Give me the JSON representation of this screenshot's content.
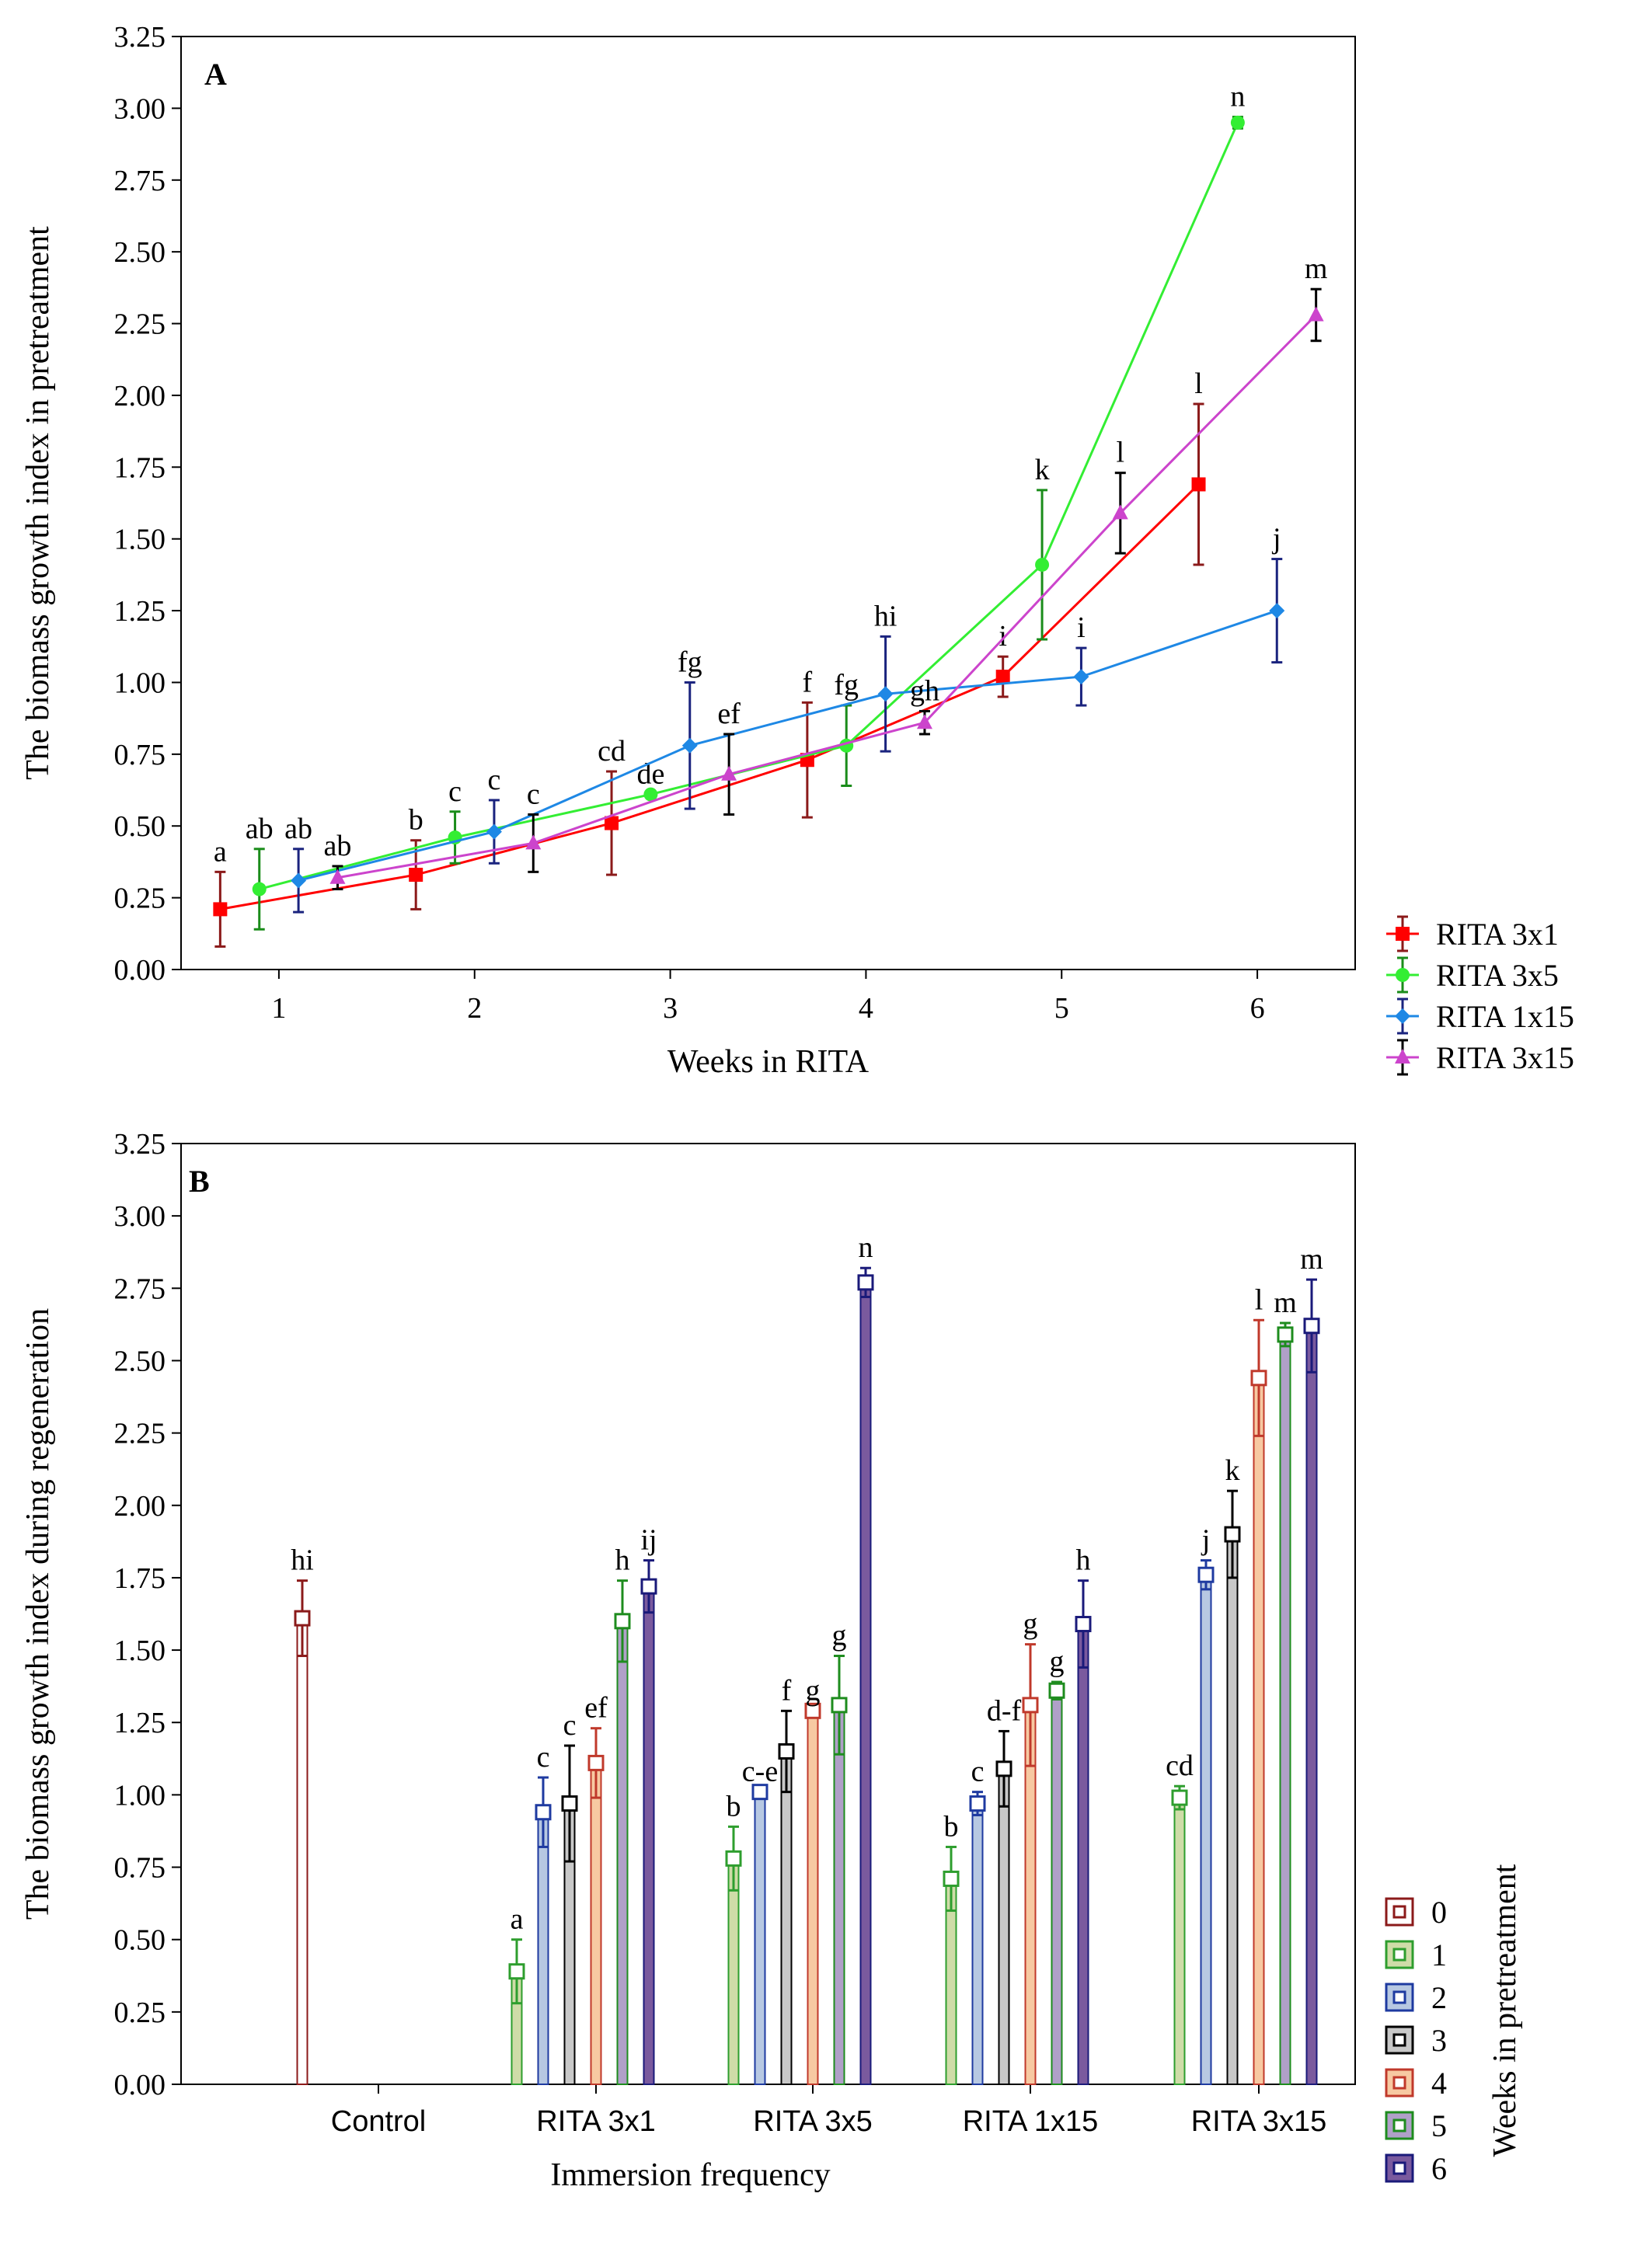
{
  "chart_data": [
    {
      "type": "line",
      "panel_label": "A",
      "xlabel": "Weeks in RITA",
      "ylabel": "The biomass growth index in pretreatment",
      "xlim": [
        0.5,
        6.5
      ],
      "ylim": [
        0,
        3.25
      ],
      "x_ticks": [
        "1",
        "2",
        "3",
        "4",
        "5",
        "6"
      ],
      "y_ticks": [
        "0.00",
        "0.25",
        "0.50",
        "0.75",
        "1.00",
        "1.25",
        "1.50",
        "1.75",
        "2.00",
        "2.25",
        "2.50",
        "2.75",
        "3.00",
        "3.25"
      ],
      "grid": false,
      "legend_position": "right-bottom, outside plot",
      "series": [
        {
          "name": "RITA 3x1",
          "color": "#ff0000",
          "errbar_color": "#8b1a1a",
          "marker": "square",
          "x": [
            0.7,
            1.7,
            2.7,
            3.7,
            4.7,
            5.7
          ],
          "y": [
            0.21,
            0.33,
            0.51,
            0.73,
            1.02,
            1.69
          ],
          "err": [
            0.13,
            0.12,
            0.18,
            0.2,
            0.07,
            0.28
          ],
          "letters": [
            "a",
            "b",
            "cd",
            "f",
            "i",
            "l"
          ]
        },
        {
          "name": "RITA 3x5",
          "color": "#33ee33",
          "errbar_color": "#1a8c1a",
          "marker": "circle",
          "x": [
            0.9,
            1.9,
            2.9,
            3.9,
            4.9,
            5.9
          ],
          "y": [
            0.28,
            0.46,
            0.61,
            0.78,
            1.41,
            2.95
          ],
          "err": [
            0.14,
            0.09,
            0.0,
            0.14,
            0.26,
            0.02
          ],
          "letters": [
            "ab",
            "c",
            "de",
            "fg",
            "k",
            "n"
          ]
        },
        {
          "name": "RITA 1x15",
          "color": "#1e88e5",
          "errbar_color": "#1a237e",
          "marker": "diamond",
          "x": [
            1.1,
            2.1,
            3.1,
            4.1,
            5.1,
            6.1
          ],
          "y": [
            0.31,
            0.48,
            0.78,
            0.96,
            1.02,
            1.25
          ],
          "err": [
            0.11,
            0.11,
            0.22,
            0.2,
            0.1,
            0.18
          ],
          "letters": [
            "ab",
            "c",
            "fg",
            "hi",
            "i",
            "j"
          ]
        },
        {
          "name": "RITA 3x15",
          "color": "#cc44cc",
          "errbar_color": "#000000",
          "marker": "triangle",
          "x": [
            1.3,
            2.3,
            3.3,
            4.3,
            5.3,
            6.3
          ],
          "y": [
            0.32,
            0.44,
            0.68,
            0.86,
            1.59,
            2.28
          ],
          "err": [
            0.04,
            0.1,
            0.14,
            0.04,
            0.14,
            0.09
          ],
          "letters": [
            "ab",
            "c",
            "ef",
            "gh",
            "l",
            "m"
          ]
        }
      ]
    },
    {
      "type": "bar",
      "panel_label": "B",
      "xlabel": "Immersion frequency",
      "ylabel": "The biomass growth index during regeneration",
      "ylim": [
        0,
        3.25
      ],
      "y_ticks": [
        "0.00",
        "0.25",
        "0.50",
        "0.75",
        "1.00",
        "1.25",
        "1.50",
        "1.75",
        "2.00",
        "2.25",
        "2.50",
        "2.75",
        "3.00",
        "3.25"
      ],
      "categories": [
        "Control",
        "RITA 3x1",
        "RITA 3x5",
        "RITA 1x15",
        "RITA 3x15"
      ],
      "grid": false,
      "legend_title": "Weeks in pretreatment",
      "legend_position": "right-bottom, outside plot",
      "series": [
        {
          "name": "0",
          "fill": "#ffffff",
          "edge": "#8b1a1a",
          "values": [
            1.61,
            null,
            null,
            null,
            null
          ],
          "err": [
            0.13,
            null,
            null,
            null,
            null
          ],
          "letters": [
            "hi",
            "",
            "",
            "",
            ""
          ]
        },
        {
          "name": "1",
          "fill": "#cfdca8",
          "edge": "#2e9e2e",
          "values": [
            null,
            0.39,
            0.78,
            0.71,
            0.99
          ],
          "err": [
            null,
            0.11,
            0.11,
            0.11,
            0.04
          ],
          "letters": [
            "",
            "a",
            "b",
            "b",
            "cd"
          ]
        },
        {
          "name": "2",
          "fill": "#b7c8e2",
          "edge": "#1e3aa0",
          "values": [
            null,
            0.94,
            1.01,
            0.97,
            1.76
          ],
          "err": [
            null,
            0.12,
            0.0,
            0.04,
            0.05
          ],
          "letters": [
            "",
            "c",
            "c-e",
            "c",
            "j"
          ]
        },
        {
          "name": "3",
          "fill": "#c8c8c8",
          "edge": "#000000",
          "values": [
            null,
            0.97,
            1.15,
            1.09,
            1.9
          ],
          "err": [
            null,
            0.2,
            0.14,
            0.13,
            0.15
          ],
          "letters": [
            "",
            "c",
            "f",
            "d-f",
            "k"
          ]
        },
        {
          "name": "4",
          "fill": "#f7c9a2",
          "edge": "#c0392b",
          "values": [
            null,
            1.11,
            1.29,
            1.31,
            2.44
          ],
          "err": [
            null,
            0.12,
            0.0,
            0.21,
            0.2
          ],
          "letters": [
            "",
            "ef",
            "g",
            "g",
            "l"
          ]
        },
        {
          "name": "5",
          "fill": "#b0a0c8",
          "edge": "#1e8c1e",
          "values": [
            null,
            1.6,
            1.31,
            1.36,
            2.59
          ],
          "err": [
            null,
            0.14,
            0.17,
            0.03,
            0.04
          ],
          "letters": [
            "",
            "h",
            "g",
            "g",
            "m"
          ]
        },
        {
          "name": "6",
          "fill": "#7a5a9e",
          "edge": "#1a1a7a",
          "values": [
            null,
            1.72,
            2.77,
            1.59,
            2.62
          ],
          "err": [
            null,
            0.09,
            0.05,
            0.15,
            0.16
          ],
          "letters": [
            "",
            "ij",
            "n",
            "h",
            "m"
          ]
        }
      ]
    }
  ]
}
